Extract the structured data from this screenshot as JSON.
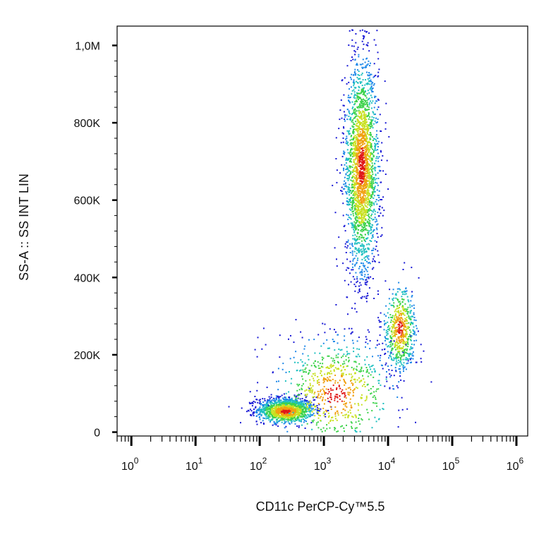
{
  "chart_data": {
    "type": "scatter",
    "title": "",
    "xlabel": "CD11c PerCP-Cy™5.5",
    "ylabel": "SS-A :: SS INT LIN",
    "x_scale": "log",
    "y_scale": "linear",
    "xlim": [
      0.6,
      1500000
    ],
    "ylim": [
      -10000,
      1050000
    ],
    "x_ticks": [
      {
        "value": 1,
        "base": "10",
        "exp": "0"
      },
      {
        "value": 10,
        "base": "10",
        "exp": "1"
      },
      {
        "value": 100,
        "base": "10",
        "exp": "2"
      },
      {
        "value": 1000,
        "base": "10",
        "exp": "3"
      },
      {
        "value": 10000,
        "base": "10",
        "exp": "4"
      },
      {
        "value": 100000,
        "base": "10",
        "exp": "5"
      },
      {
        "value": 1000000,
        "base": "10",
        "exp": "6"
      }
    ],
    "y_ticks": [
      {
        "value": 0,
        "label": "0"
      },
      {
        "value": 200000,
        "label": "200K"
      },
      {
        "value": 400000,
        "label": "400K"
      },
      {
        "value": 600000,
        "label": "600K"
      },
      {
        "value": 800000,
        "label": "800K"
      },
      {
        "value": 1000000,
        "label": "1,0M"
      }
    ],
    "grid": false,
    "legend": "none",
    "density_colors": [
      "#1a1ad6",
      "#1e88e8",
      "#20c0c0",
      "#3cd24a",
      "#c8e020",
      "#f0a010",
      "#e01818"
    ],
    "populations": [
      {
        "x_center": 250,
        "y_center": 60000,
        "x_spread_decades": 0.22,
        "y_spread": 16000,
        "peak_x": 250,
        "peak_y": 55000,
        "relative_count": 0.25
      },
      {
        "x_center": 3800,
        "y_center": 680000,
        "x_spread_decades": 0.13,
        "y_spread": 135000,
        "peak_x": 3800,
        "peak_y": 690000,
        "relative_count": 0.45
      },
      {
        "x_center": 15000,
        "y_center": 260000,
        "x_spread_decades": 0.12,
        "y_spread": 55000,
        "peak_x": 15000,
        "peak_y": 270000,
        "relative_count": 0.12
      },
      {
        "x_center": 1500,
        "y_center": 120000,
        "x_spread_decades": 0.45,
        "y_spread": 70000,
        "peak_x": 1500,
        "peak_y": 100000,
        "relative_count": 0.14
      }
    ]
  }
}
